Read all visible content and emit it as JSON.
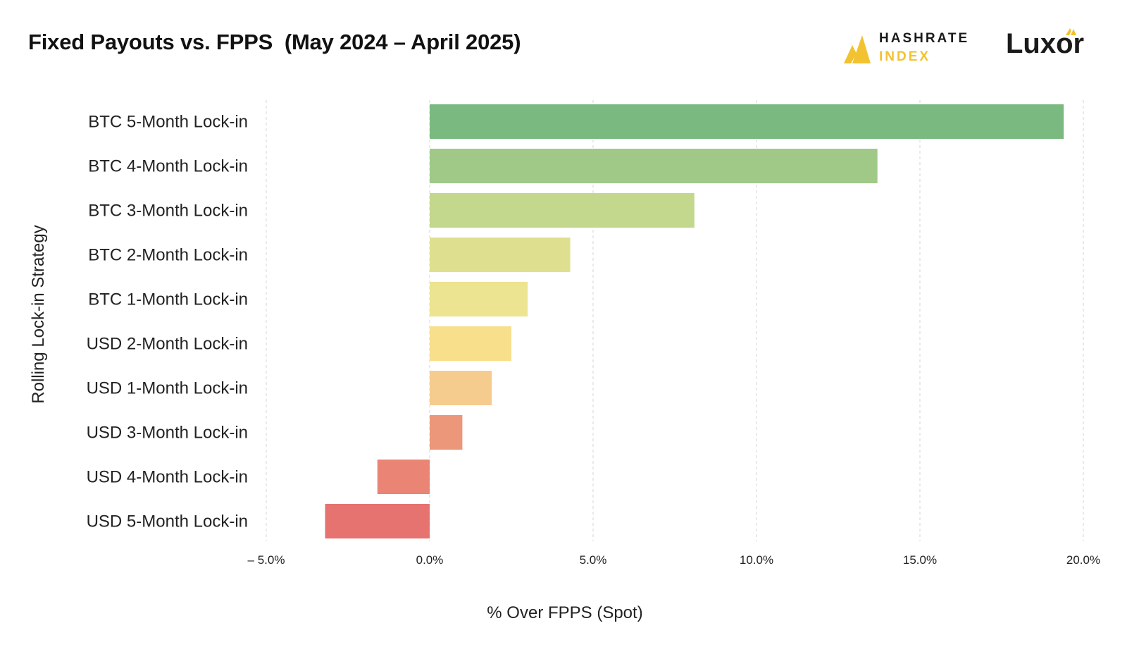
{
  "header": {
    "title": "Fixed Payouts vs. FPPS  (May 2024 – April 2025)",
    "logo_hashrate_line1": "HASHRATE",
    "logo_hashrate_line2": "INDEX",
    "logo_luxor": "Luxor"
  },
  "chart_data": {
    "type": "bar",
    "orientation": "horizontal",
    "xlabel": "% Over FPPS (Spot)",
    "ylabel": "Rolling Lock-in Strategy",
    "xlim": [
      -5,
      20
    ],
    "xticks": [
      -5,
      0,
      5,
      10,
      15,
      20
    ],
    "xtick_labels": [
      "– 5.0%",
      "0.0%",
      "5.0%",
      "10.0%",
      "15.0%",
      "20.0%"
    ],
    "grid": "vertical dashed",
    "categories": [
      "BTC 5-Month Lock-in",
      "BTC 4-Month Lock-in",
      "BTC 3-Month Lock-in",
      "BTC 2-Month Lock-in",
      "BTC 1-Month Lock-in",
      "USD 2-Month Lock-in",
      "USD 1-Month Lock-in",
      "USD 3-Month Lock-in",
      "USD 4-Month Lock-in",
      "USD 5-Month Lock-in"
    ],
    "values": [
      19.4,
      13.7,
      8.1,
      4.3,
      3.0,
      2.5,
      1.9,
      1.0,
      -1.6,
      -3.2
    ],
    "colors": [
      "#7aba80",
      "#a0c988",
      "#c3d78d",
      "#dfe08f",
      "#ece490",
      "#f7df8c",
      "#f6cc8e",
      "#ec977a",
      "#ea8474",
      "#e67370"
    ]
  }
}
